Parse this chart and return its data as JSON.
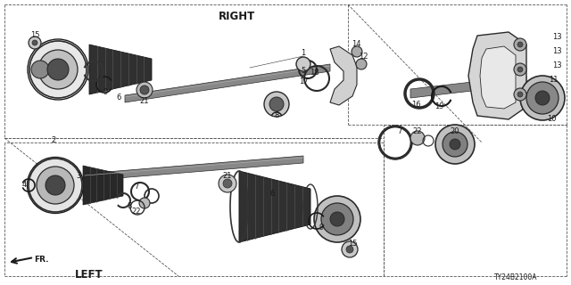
{
  "bg_color": "#ffffff",
  "line_color": "#1a1a1a",
  "gray_dark": "#2a2a2a",
  "gray_med": "#666666",
  "gray_light": "#bbbbbb",
  "gray_fill": "#d8d8d8",
  "fig_width": 6.4,
  "fig_height": 3.2,
  "dpi": 100,
  "part_number": "TY24B2100A",
  "title_right": "RIGHT",
  "title_left": "LEFT"
}
